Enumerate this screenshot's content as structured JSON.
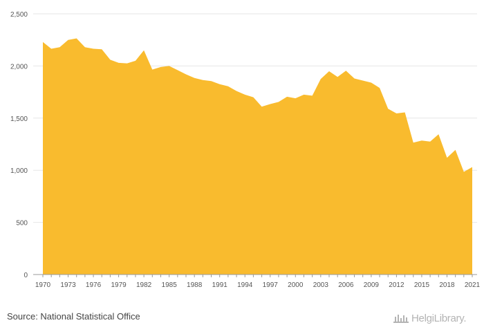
{
  "chart_data": {
    "type": "area",
    "title": "",
    "xlabel": "",
    "ylabel": "",
    "ylim": [
      0,
      2500
    ],
    "yticks": [
      0,
      500,
      1000,
      1500,
      2000,
      2500
    ],
    "y_tick_labels": [
      "0",
      "500",
      "1,000",
      "1,500",
      "2,000",
      "2,500"
    ],
    "xticks": [
      1970,
      1973,
      1976,
      1979,
      1982,
      1985,
      1988,
      1991,
      1994,
      1997,
      2000,
      2003,
      2006,
      2009,
      2012,
      2015,
      2018,
      2021
    ],
    "x_tick_labels": [
      "1970",
      "1973",
      "1976",
      "1979",
      "1982",
      "1985",
      "1988",
      "1991",
      "1994",
      "1997",
      "2000",
      "2003",
      "2006",
      "2009",
      "2012",
      "2015",
      "2018",
      "2021"
    ],
    "grid": true,
    "fill_color": "#f9bb2e",
    "x": [
      1970,
      1971,
      1972,
      1973,
      1974,
      1975,
      1976,
      1977,
      1978,
      1979,
      1980,
      1981,
      1982,
      1983,
      1984,
      1985,
      1986,
      1987,
      1988,
      1989,
      1990,
      1991,
      1992,
      1993,
      1994,
      1995,
      1996,
      1997,
      1998,
      1999,
      2000,
      2001,
      2002,
      2003,
      2004,
      2005,
      2006,
      2007,
      2008,
      2009,
      2010,
      2011,
      2012,
      2013,
      2014,
      2015,
      2016,
      2017,
      2018,
      2019,
      2020,
      2021
    ],
    "values": [
      2230,
      2165,
      2180,
      2250,
      2265,
      2180,
      2165,
      2160,
      2060,
      2030,
      2025,
      2050,
      2150,
      1965,
      1990,
      2000,
      1960,
      1920,
      1885,
      1865,
      1855,
      1825,
      1805,
      1760,
      1725,
      1700,
      1610,
      1635,
      1655,
      1705,
      1690,
      1725,
      1715,
      1875,
      1950,
      1895,
      1955,
      1880,
      1860,
      1840,
      1790,
      1590,
      1545,
      1555,
      1265,
      1285,
      1275,
      1345,
      1120,
      1195,
      985,
      1030
    ]
  },
  "footer": {
    "source": "Source: National Statistical Office",
    "logo_text": "HelgiLibrary."
  }
}
